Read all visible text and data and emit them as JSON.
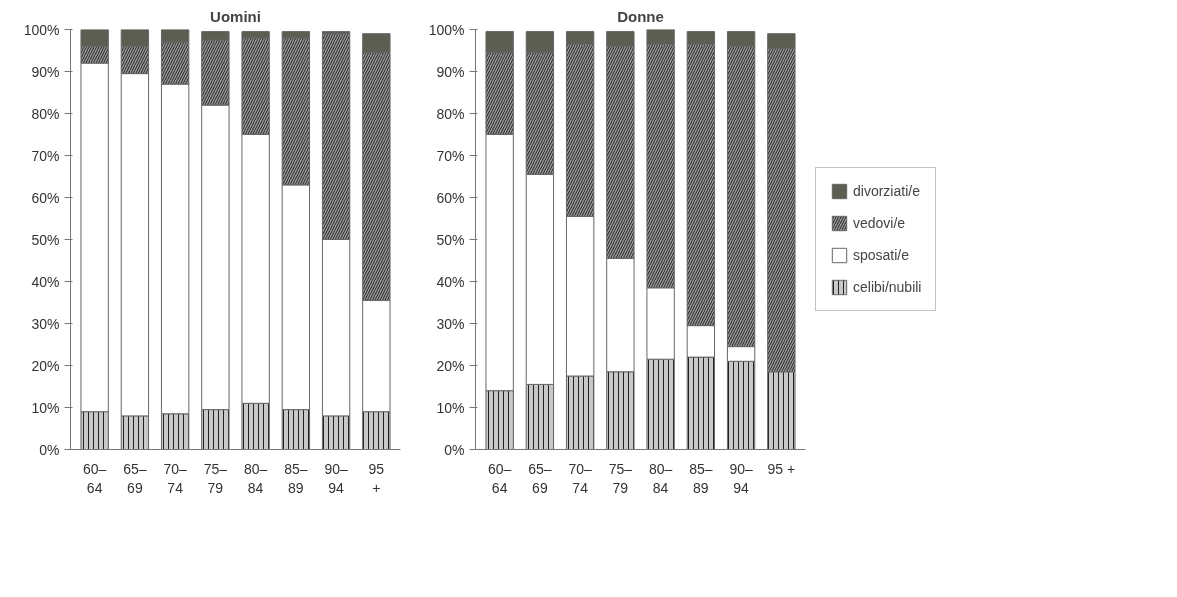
{
  "chart_data": [
    {
      "type": "bar",
      "title": "Uomini",
      "stacked": true,
      "categories": [
        "60–\n64",
        "65–\n69",
        "70–\n74",
        "75–\n79",
        "80–\n84",
        "85–\n89",
        "90–\n94",
        "95\n+"
      ],
      "series": [
        {
          "color": "#c8c8c8",
          "values": [
            9,
            8,
            8.5,
            9.5,
            11,
            9.5,
            8,
            9
          ]
        },
        {
          "color": "#ffffff",
          "values": [
            83,
            81.5,
            78.5,
            72.5,
            64,
            53.5,
            42,
            26.5
          ]
        },
        {
          "color": "#9a9a9a",
          "values": [
            4,
            6.5,
            10,
            15.5,
            23,
            35,
            49,
            59
          ]
        },
        {
          "color": "#5b5f52",
          "values": [
            4,
            4,
            3,
            2,
            1.5,
            1.5,
            0.5,
            4.5
          ]
        }
      ],
      "ylim": [
        0,
        100
      ],
      "yticks": [
        {
          "value": 0,
          "label": "0%"
        },
        {
          "value": 10,
          "label": "10%"
        },
        {
          "value": 20,
          "label": "20%"
        },
        {
          "value": 30,
          "label": "30%"
        },
        {
          "value": 40,
          "label": "40%"
        },
        {
          "value": 50,
          "label": "50%"
        },
        {
          "value": 60,
          "label": "60%"
        },
        {
          "value": 70,
          "label": "70%"
        },
        {
          "value": 80,
          "label": "80%"
        },
        {
          "value": 90,
          "label": "90%"
        },
        {
          "value": 100,
          "label": "100%"
        }
      ]
    },
    {
      "type": "bar",
      "title": "Donne",
      "stacked": true,
      "legend": "right",
      "categories": [
        "60–\n64",
        "65–\n69",
        "70–\n74",
        "75–\n79",
        "80–\n84",
        "85–\n89",
        "90–\n94",
        "95 +"
      ],
      "series": [
        {
          "name": "celibi/nubili",
          "color": "#c8c8c8",
          "values": [
            14,
            15.5,
            17.5,
            18.5,
            21.5,
            22,
            21,
            18.5
          ]
        },
        {
          "name": "sposati/e",
          "color": "#ffffff",
          "values": [
            61,
            50,
            38,
            27,
            17,
            7.5,
            3.5,
            0
          ]
        },
        {
          "name": "vedovi/e",
          "color": "#9a9a9a",
          "values": [
            19.5,
            29,
            41,
            50.5,
            58,
            67,
            71.5,
            77
          ]
        },
        {
          "name": "divorziati/e",
          "color": "#5b5f52",
          "values": [
            5,
            5,
            3,
            3.5,
            3.5,
            3,
            3.5,
            3.5
          ]
        }
      ],
      "ylim": [
        0,
        100
      ],
      "yticks": [
        {
          "value": 0,
          "label": "0%"
        },
        {
          "value": 10,
          "label": "10%"
        },
        {
          "value": 20,
          "label": "20%"
        },
        {
          "value": 30,
          "label": "30%"
        },
        {
          "value": 40,
          "label": "40%"
        },
        {
          "value": 50,
          "label": "50%"
        },
        {
          "value": 60,
          "label": "60%"
        },
        {
          "value": 70,
          "label": "70%"
        },
        {
          "value": 80,
          "label": "80%"
        },
        {
          "value": 90,
          "label": "90%"
        },
        {
          "value": 100,
          "label": "100%"
        }
      ]
    }
  ]
}
